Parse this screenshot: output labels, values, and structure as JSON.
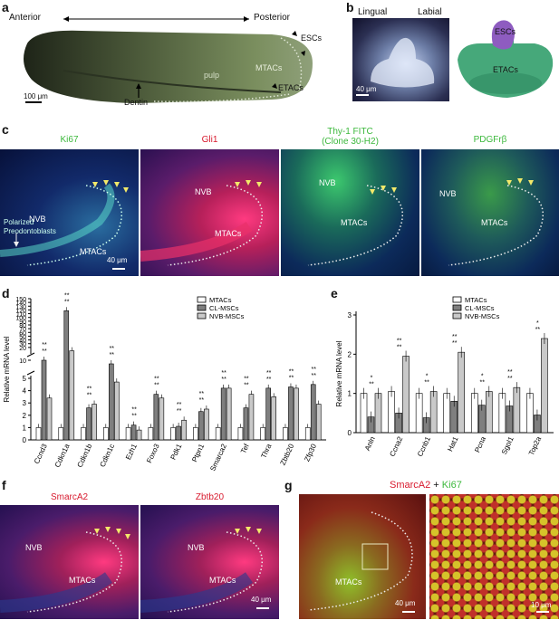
{
  "panels": {
    "a": {
      "letter": "a",
      "axis_left": "Anterior",
      "axis_right": "Posterior",
      "labels": [
        "ESCs",
        "pulp",
        "MTACs",
        "ETACs",
        "Dentin"
      ],
      "scale": "100 μm"
    },
    "b": {
      "letter": "b",
      "lingual": "Lingual",
      "labial": "Labial",
      "scale": "40 μm",
      "escs": "ESCs",
      "etacs": "ETACs"
    },
    "c": {
      "letter": "c",
      "images": [
        {
          "title": "Ki67",
          "title_color": "#3cb83c",
          "nvb": "NVB",
          "mtacs": "MTACs",
          "extra1": "Polarized",
          "extra2": "Preodontoblasts",
          "scale": "40 μm"
        },
        {
          "title": "Gli1",
          "title_color": "#d81a2e",
          "nvb": "NVB",
          "mtacs": "MTACs"
        },
        {
          "title": "Thy-1 FITC",
          "title2": "(Clone 30-H2)",
          "title_color": "#3cb83c",
          "nvb": "NVB",
          "mtacs": "MTACs"
        },
        {
          "title": "PDGFrβ",
          "title_color": "#3cb83c",
          "nvb": "NVB",
          "mtacs": "MTACs"
        }
      ]
    },
    "d": {
      "letter": "d"
    },
    "e": {
      "letter": "e"
    },
    "f": {
      "letter": "f",
      "images": [
        {
          "title": "SmarcA2",
          "title_color": "#d81a2e",
          "nvb": "NVB",
          "mtacs": "MTACs"
        },
        {
          "title": "Zbtb20",
          "title_color": "#d81a2e",
          "nvb": "NVB",
          "mtacs": "MTACs",
          "scale": "40 μm"
        }
      ]
    },
    "g": {
      "letter": "g",
      "title_a": "SmarcA2",
      "title_plus": " + ",
      "title_b": "Ki67",
      "title_a_color": "#d81a2e",
      "title_b_color": "#3cb83c",
      "mtacs": "MTACs",
      "scale_left": "40 μm",
      "scale_right": "10 μm"
    }
  },
  "chart_data": [
    {
      "type": "bar",
      "panel": "d",
      "ylabel": "Relative mRNA level",
      "ytick_labels_lower": [
        "0",
        "1",
        "2",
        "3",
        "4",
        "5"
      ],
      "ytick_labels_upper": [
        "10",
        "20",
        "30",
        "40",
        "50",
        "60",
        "70",
        "80",
        "90",
        "100",
        "110",
        "120",
        "130",
        "140",
        "150"
      ],
      "ylim_lower": [
        0,
        5
      ],
      "ylim_upper": [
        5,
        150
      ],
      "axis_break": true,
      "legend": [
        "MTACs",
        "CL-MSCs",
        "NVB-MSCs"
      ],
      "categories": [
        "Ccnd3",
        "Cdkn1a",
        "Cdkn1b",
        "Cdkn1c",
        "Ezh1",
        "Foxo3",
        "Pdk1",
        "Ptpn1",
        "Smarca2",
        "Tef",
        "Thra",
        "Zbtb20",
        "Zfp30"
      ],
      "series": [
        {
          "name": "MTACs",
          "color": "#ffffff",
          "values": [
            1,
            1,
            1,
            1,
            1,
            1,
            1,
            1,
            1,
            1,
            1,
            1,
            1
          ]
        },
        {
          "name": "CL-MSCs",
          "color": "#7f7f7f",
          "values": [
            10,
            118,
            2.6,
            8,
            1.2,
            3.7,
            1.1,
            2.3,
            4.2,
            2.6,
            4.2,
            4.3,
            4.5
          ]
        },
        {
          "name": "NVB-MSCs",
          "color": "#c9c9c9",
          "values": [
            3.4,
            11,
            2.9,
            4.7,
            0.8,
            3.4,
            1.6,
            2.5,
            4.2,
            3.7,
            3.5,
            4.2,
            2.9
          ]
        }
      ],
      "significance": "**"
    },
    {
      "type": "bar",
      "panel": "e",
      "ylabel": "Relative mRNA level",
      "ytick_labels": [
        "0",
        "1",
        "2",
        "3"
      ],
      "ylim": [
        0,
        3
      ],
      "legend": [
        "MTACs",
        "CL-MSCs",
        "NVB-MSCs"
      ],
      "categories": [
        "Anln",
        "Ccna2",
        "Ccnb1",
        "Hat1",
        "Pcna",
        "Sgol1",
        "Top2a"
      ],
      "series": [
        {
          "name": "MTACs",
          "color": "#ffffff",
          "values": [
            1,
            1.05,
            1.0,
            1.0,
            1.0,
            1.0,
            1.0
          ]
        },
        {
          "name": "CL-MSCs",
          "color": "#7f7f7f",
          "values": [
            0.4,
            0.5,
            0.38,
            0.8,
            0.7,
            0.68,
            0.45
          ]
        },
        {
          "name": "NVB-MSCs",
          "color": "#c9c9c9",
          "values": [
            1.0,
            1.95,
            1.05,
            2.05,
            1.05,
            1.15,
            2.4
          ]
        }
      ],
      "significance_marks": [
        "*",
        "**"
      ]
    }
  ]
}
